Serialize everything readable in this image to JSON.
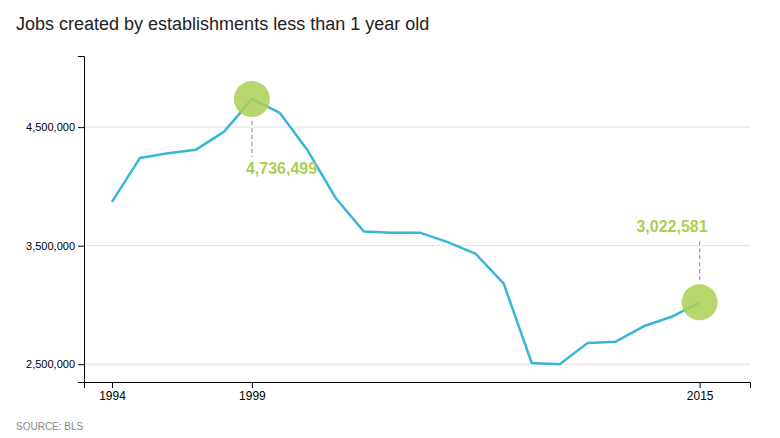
{
  "chart_data": {
    "type": "line",
    "title": "Jobs created by establishments less than 1 year old",
    "source": "SOURCE: BLS",
    "color": "#3ab5d8",
    "x": [
      1994,
      1995,
      1996,
      1997,
      1998,
      1999,
      2000,
      2001,
      2002,
      2003,
      2004,
      2005,
      2006,
      2007,
      2008,
      2009,
      2010,
      2011,
      2012,
      2013,
      2014,
      2015
    ],
    "values": [
      3870000,
      4240000,
      4280000,
      4310000,
      4460000,
      4736499,
      4620000,
      4300000,
      3900000,
      3620000,
      3610000,
      3610000,
      3530000,
      3430000,
      3180000,
      2510000,
      2500000,
      2680000,
      2690000,
      2820000,
      2900000,
      3022581
    ],
    "xlim": [
      1993.0,
      2016.8
    ],
    "xticks": [
      1994,
      1999,
      2015
    ],
    "ylim": [
      2350000,
      5100000
    ],
    "yticks": [
      {
        "value": 2500000,
        "label": "2,500,000"
      },
      {
        "value": 3500000,
        "label": "3,500,000"
      },
      {
        "value": 4500000,
        "label": "4,500,000"
      }
    ],
    "grid": "y",
    "annotations": [
      {
        "text": "4,736,499",
        "x": 1999,
        "y": 4736499,
        "color": "#aacf53"
      },
      {
        "text": "3,022,581",
        "x": 2015,
        "y": 3022581,
        "color": "#aacf53"
      }
    ]
  }
}
